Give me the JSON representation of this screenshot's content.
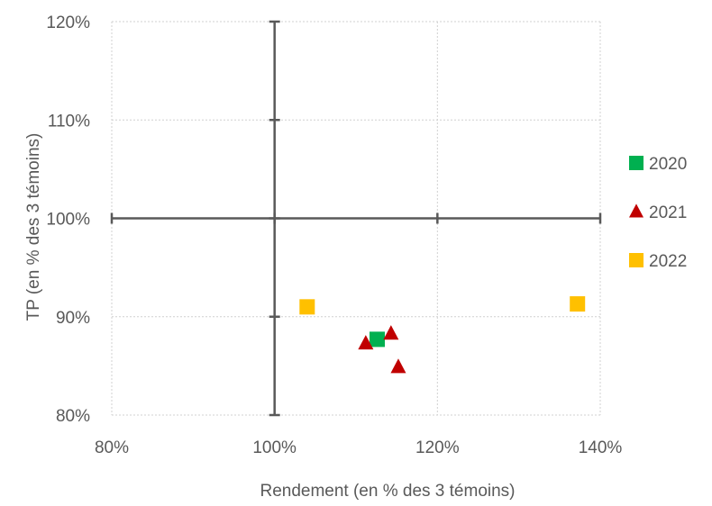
{
  "chart_data": {
    "type": "scatter",
    "xlabel": "Rendement (en % des 3 témoins)",
    "ylabel": "TP (en % des 3 témoins)",
    "xlim": [
      0.8,
      1.4
    ],
    "ylim": [
      0.8,
      1.2
    ],
    "x_ticks": [
      "80%",
      "100%",
      "120%",
      "140%"
    ],
    "y_ticks": [
      "80%",
      "90%",
      "100%",
      "110%",
      "120%"
    ],
    "grid": true,
    "reference_lines": {
      "x": 1.0,
      "y": 1.0
    },
    "legend_position": "right",
    "series": [
      {
        "name": "2020",
        "marker": "square",
        "color": "#00B050",
        "points": [
          {
            "x": 1.126,
            "y": 0.877
          }
        ]
      },
      {
        "name": "2021",
        "marker": "triangle",
        "color": "#C00000",
        "points": [
          {
            "x": 1.112,
            "y": 0.873
          },
          {
            "x": 1.143,
            "y": 0.883
          },
          {
            "x": 1.152,
            "y": 0.849
          }
        ]
      },
      {
        "name": "2022",
        "marker": "square",
        "color": "#FFC000",
        "points": [
          {
            "x": 1.04,
            "y": 0.91
          },
          {
            "x": 1.372,
            "y": 0.913
          }
        ]
      }
    ]
  }
}
